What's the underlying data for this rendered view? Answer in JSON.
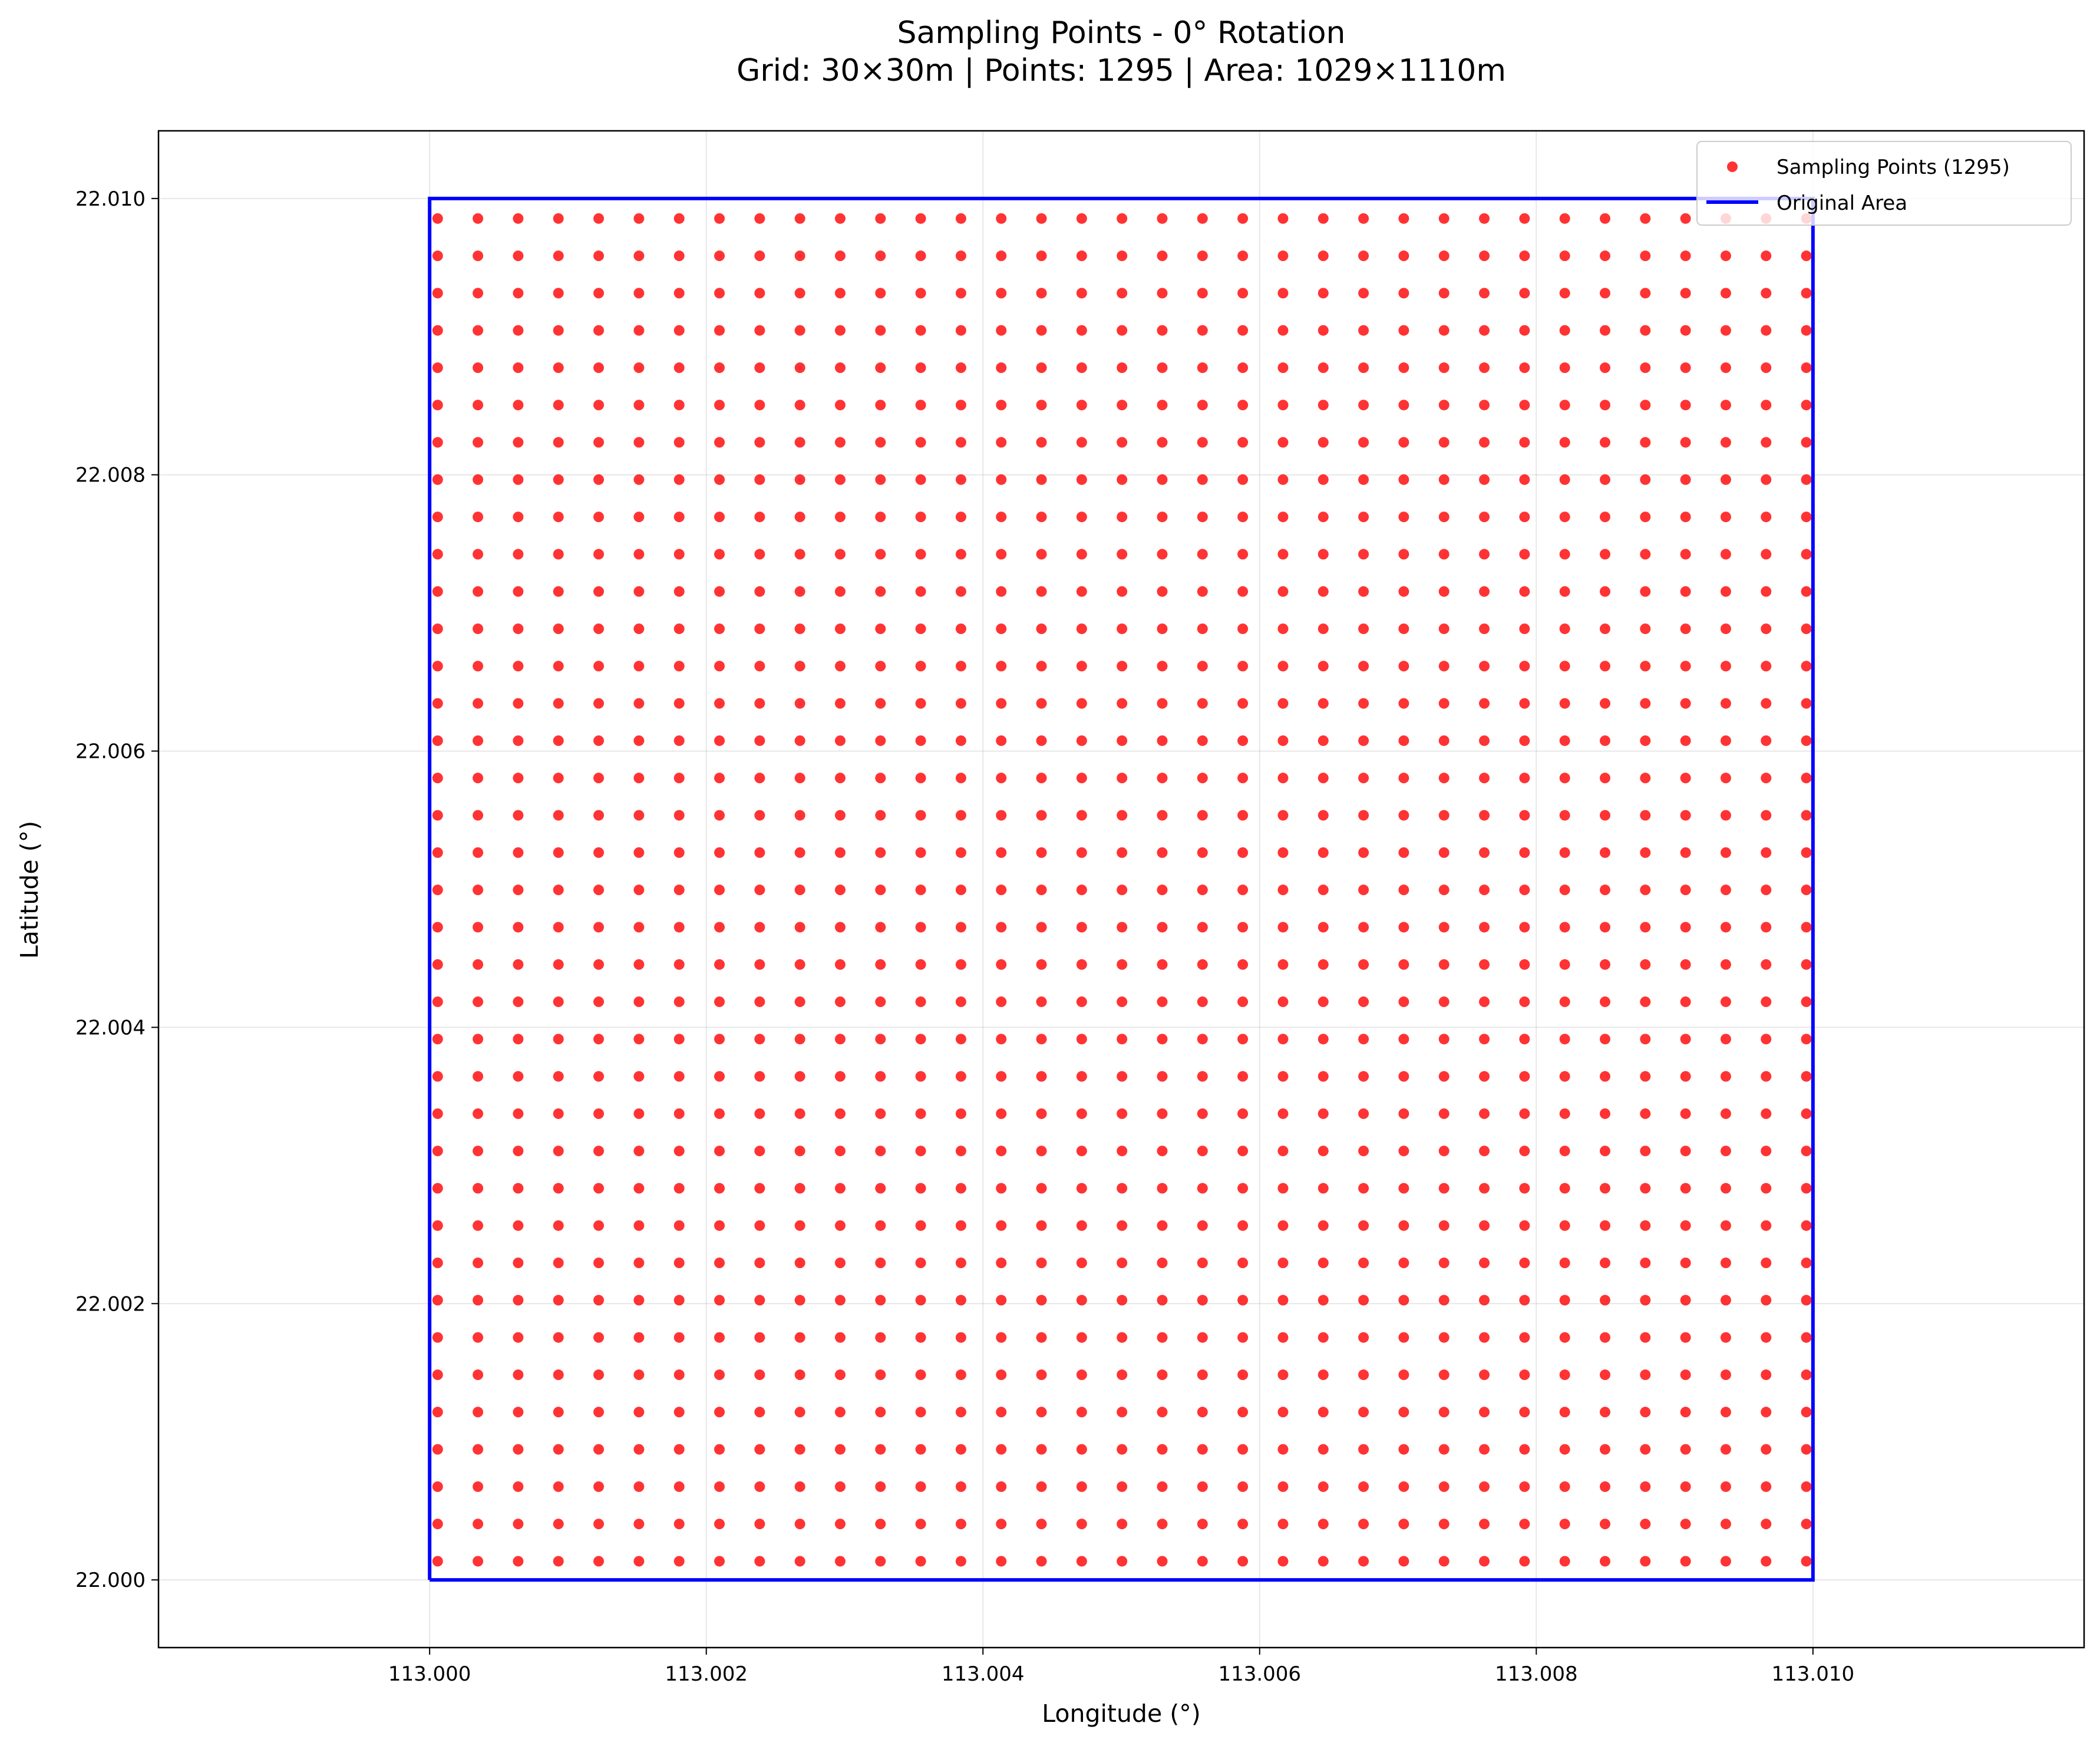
{
  "chart_data": {
    "type": "scatter",
    "title": "Sampling Points - 0° Rotation",
    "subtitle": "Grid: 30×30m | Points: 1295 | Area: 1029×1110m",
    "xlabel": "Longitude (°)",
    "ylabel": "Latitude (°)",
    "xlim": [
      112.99804,
      113.01196
    ],
    "ylim": [
      21.99951,
      22.01049
    ],
    "x_ticks": [
      113.0,
      113.002,
      113.004,
      113.006,
      113.008,
      113.01
    ],
    "x_tick_labels": [
      "113.000",
      "113.002",
      "113.004",
      "113.006",
      "113.008",
      "113.010"
    ],
    "y_ticks": [
      22.0,
      22.002,
      22.004,
      22.006,
      22.008,
      22.01
    ],
    "y_tick_labels": [
      "22.000",
      "22.002",
      "22.004",
      "22.006",
      "22.008",
      "22.010"
    ],
    "grid": true,
    "legend_position": "top-right",
    "legend": [
      {
        "label": "Sampling Points (1295)",
        "marker": "dot",
        "color": "#ff0000"
      },
      {
        "label": "Original Area",
        "marker": "line",
        "color": "#0000ff"
      }
    ],
    "series": [
      {
        "name": "Sampling Points (1295)",
        "type": "scatter",
        "color": "#ff0000",
        "grid": {
          "x_start": 113.000058,
          "x_step": 0.000291,
          "x_count": 35,
          "y_start": 22.000135,
          "y_step": 0.00027,
          "y_count": 37
        }
      },
      {
        "name": "Original Area",
        "type": "line",
        "color": "#0000ff",
        "x": [
          113.0,
          113.01,
          113.01,
          113.0,
          113.0
        ],
        "y": [
          22.0,
          22.0,
          22.01,
          22.01,
          22.0
        ]
      }
    ]
  }
}
